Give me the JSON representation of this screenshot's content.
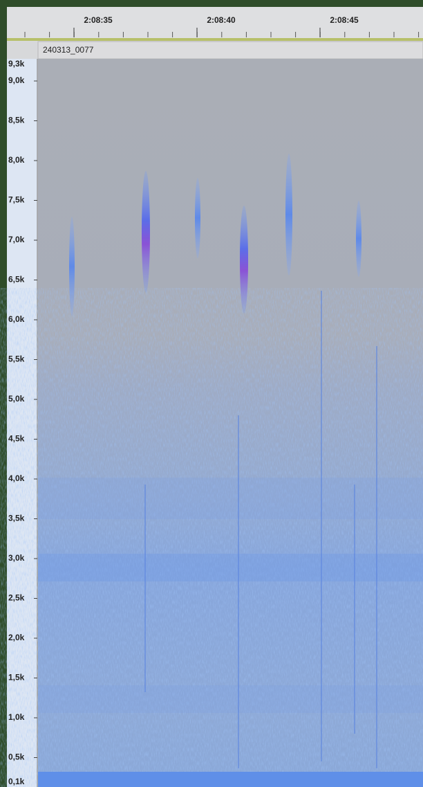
{
  "time_ruler": {
    "labels": [
      "2:08:35",
      "2:08:40",
      "2:08:45"
    ]
  },
  "track": {
    "name": "240313_0077"
  },
  "frequency_axis": {
    "labels": [
      "9,3k",
      "9,0k",
      "8,5k",
      "8,0k",
      "7,5k",
      "7,0k",
      "6,5k",
      "6,0k",
      "5,5k",
      "5,0k",
      "4,5k",
      "4,0k",
      "3,5k",
      "3,0k",
      "2,5k",
      "2,0k",
      "1,5k",
      "1,0k",
      "0,5k",
      "0,1k"
    ]
  }
}
